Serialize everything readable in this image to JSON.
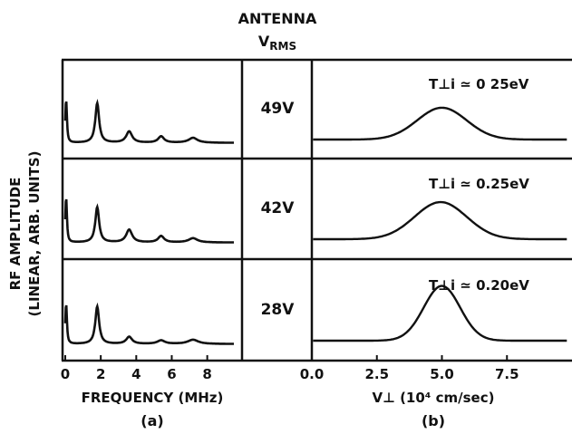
{
  "header": {
    "line1": "ANTENNA",
    "line2_main": "V",
    "line2_sub": "RMS"
  },
  "ylabel_line1": "RF AMPLITUDE",
  "ylabel_line2": "(LINEAR, ARB. UNITS)",
  "panel_a_label": "(a)",
  "panel_b_label": "(b)",
  "chart_data": [
    {
      "type": "line",
      "panel": "a",
      "xlabel": "FREQUENCY (MHz)",
      "ylabel": "RF AMPLITUDE (LINEAR, ARB. UNITS)",
      "xlim": [
        0,
        9.5
      ],
      "ylim": [
        0,
        1
      ],
      "xticks": [
        "0",
        "2",
        "4",
        "6",
        "8"
      ],
      "tick_values": [
        0,
        2,
        4,
        6,
        8
      ],
      "rows": [
        {
          "voltage": "49V",
          "peaks": [
            {
              "f": 0.05,
              "a": 0.62,
              "w": 0.05
            },
            {
              "f": 1.8,
              "a": 0.56,
              "w": 0.13
            },
            {
              "f": 3.6,
              "a": 0.16,
              "w": 0.2
            },
            {
              "f": 5.4,
              "a": 0.09,
              "w": 0.2
            },
            {
              "f": 7.2,
              "a": 0.07,
              "w": 0.3
            }
          ]
        },
        {
          "voltage": "42V",
          "peaks": [
            {
              "f": 0.05,
              "a": 0.65,
              "w": 0.05
            },
            {
              "f": 1.8,
              "a": 0.5,
              "w": 0.13
            },
            {
              "f": 3.6,
              "a": 0.18,
              "w": 0.2
            },
            {
              "f": 5.4,
              "a": 0.09,
              "w": 0.2
            },
            {
              "f": 7.2,
              "a": 0.06,
              "w": 0.3
            }
          ]
        },
        {
          "voltage": "28V",
          "peaks": [
            {
              "f": 0.05,
              "a": 0.58,
              "w": 0.05
            },
            {
              "f": 1.8,
              "a": 0.53,
              "w": 0.13
            },
            {
              "f": 3.6,
              "a": 0.1,
              "w": 0.2
            },
            {
              "f": 5.4,
              "a": 0.05,
              "w": 0.25
            },
            {
              "f": 7.2,
              "a": 0.06,
              "w": 0.35
            }
          ]
        }
      ]
    },
    {
      "type": "line",
      "panel": "b",
      "xlabel": "V⊥ (10⁴ cm/sec)",
      "xlim": [
        0,
        10
      ],
      "ylim": [
        0,
        1
      ],
      "xticks": [
        "0.0",
        "2.5",
        "5.0",
        "7.5"
      ],
      "tick_values": [
        0,
        2.5,
        5,
        7.5
      ],
      "rows": [
        {
          "temperature": "T⊥i ≃ 0 25eV",
          "center": 5.0,
          "width": 0.95,
          "amplitude": 0.36,
          "baseline": 0.1
        },
        {
          "temperature": "T⊥i ≃ 0.25eV",
          "center": 4.95,
          "width": 1.0,
          "amplitude": 0.42,
          "baseline": 0.1
        },
        {
          "temperature": "T⊥i ≃ 0.20eV",
          "center": 5.0,
          "width": 0.7,
          "amplitude": 0.62,
          "baseline": 0.1
        }
      ]
    }
  ]
}
